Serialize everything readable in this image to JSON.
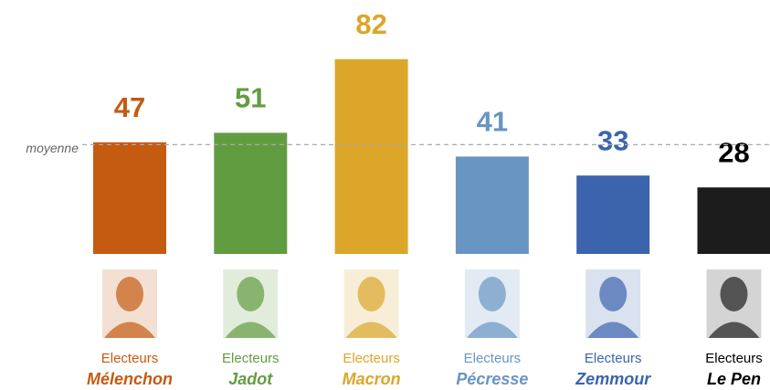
{
  "chart_data": {
    "type": "bar",
    "categories": [
      "Mélenchon",
      "Jadot",
      "Macron",
      "Pécresse",
      "Zemmour",
      "Le Pen"
    ],
    "category_prefix": "Electeurs",
    "values": [
      47,
      51,
      82,
      41,
      33,
      28
    ],
    "colors": [
      "#c55a11",
      "#629c41",
      "#dba62a",
      "#6995c2",
      "#3b64ad",
      "#1c1c1c"
    ],
    "label_colors": [
      "#c55a11",
      "#629c41",
      "#dba62a",
      "#6995c2",
      "#3b64ad",
      "#000000"
    ],
    "ylim": [
      0,
      90
    ],
    "reference_line": {
      "label": "moyenne",
      "value": 46
    }
  }
}
